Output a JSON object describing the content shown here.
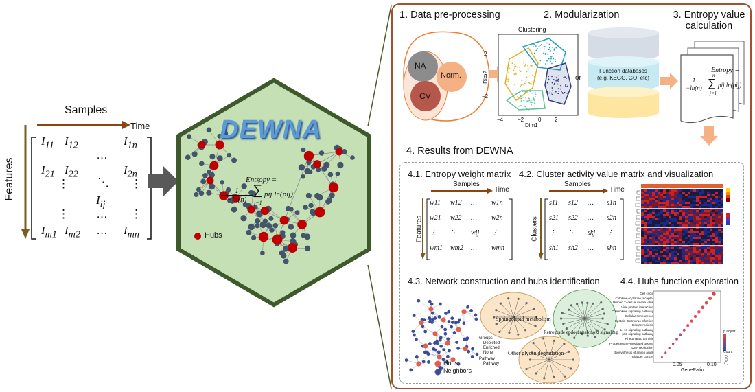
{
  "left": {
    "samples_label": "Samples",
    "time_label": "Time",
    "features_label": "Features",
    "matrix": [
      [
        "I11",
        "I12",
        "…",
        "I1n"
      ],
      [
        "I21",
        "I22",
        "…",
        "I2n"
      ],
      [
        "⋮",
        "⋱",
        "Iij",
        "⋮"
      ],
      [
        "Im1",
        "Im2",
        "…",
        "Imn"
      ]
    ]
  },
  "hexagon": {
    "title": "DEWNA",
    "formula_lhs": "Entropy =",
    "formula_frac_num": "1",
    "formula_frac_den": "−ln(n)",
    "formula_sum_top": "n",
    "formula_sum_bottom": "j=1",
    "formula_term": "pij ln(pij)",
    "hubs_label": "Hubs"
  },
  "panel": {
    "step1": "1. Data pre-processing",
    "step2": "2. Modularization",
    "step3": "3. Entropy value calculation",
    "step3_line1": "3. Entropy value",
    "step3_line2": "calculation",
    "na": "NA",
    "norm": "Norm.",
    "cv": "CV",
    "clustering_title": "Clustering",
    "dim1": "Dim1",
    "dim2": "Dim2",
    "x_ticks": [
      "−4",
      "−2",
      "0",
      "2"
    ],
    "y_ticks": [
      "2",
      "0",
      "−2"
    ],
    "or_label": "or",
    "func_db_line1": "Function databases",
    "func_db_line2": "(e.g. KEGG, GO, etc)",
    "step4": "4. Results from DEWNA",
    "s41": "4.1. Entropy weight matrix",
    "s42": "4.2. Cluster activity value matrix and visualization",
    "s43": "4.3. Network construction and hubs identification",
    "s44": "4.4. Hubs function exploration",
    "w_matrix": [
      "w11",
      "w12",
      "…",
      "w1n",
      "w21",
      "w22",
      "…",
      "w2n",
      "⋮",
      "⋱",
      "wij",
      "⋮",
      "wm1",
      "wm2",
      "…",
      "wmn"
    ],
    "s_matrix": [
      "s11",
      "s12",
      "…",
      "s1n",
      "s21",
      "s22",
      "…",
      "s2n",
      "⋮",
      "⋱",
      "skj",
      "⋮",
      "sh1",
      "sh2",
      "…",
      "shn"
    ],
    "features_label": "Features",
    "clusters_label": "Clusters",
    "samples_label": "Samples",
    "time_label": "Time",
    "net_labels": [
      "Sphingolipid metabolism",
      "Retrograde endocannabinoid signaling",
      "Other glycan degradation"
    ],
    "legend_hubs": "Hubs",
    "legend_neighbors": "Neighbors",
    "groups_title": "Groups",
    "groups": [
      "Depleted",
      "Enriched",
      "None"
    ],
    "pathway_title": "Pathway",
    "pathway_item": "Pathway",
    "dot_terms": [
      "Cell cycle",
      "Cytokine−cytokine receptor",
      "Human T−cell leukemia virus",
      "Viral protein interaction",
      "Chemokine signaling pathway",
      "Cellular senescence",
      "Epstein−Barr virus infection",
      "Oocyte meiosis",
      "IL−17 signaling pathway",
      "p53 signaling pathway",
      "Rheumatoid arthritis",
      "Progesterone−mediated oocyte",
      "DNA replication",
      "Biosynthesis of amino acids",
      "Bladder cancer"
    ],
    "dot_x_ticks": [
      "0.05",
      "0.10"
    ],
    "gene_ratio": "GeneRatio",
    "p_adjust": "p.adjust",
    "count": "Count",
    "colors": {
      "border": "#a0522d",
      "arrow": "#f4b183",
      "hex_fill": "#c5e0b4",
      "hex_border": "#3e5a2c",
      "hub": "#c00000",
      "node": "#44546a"
    }
  }
}
